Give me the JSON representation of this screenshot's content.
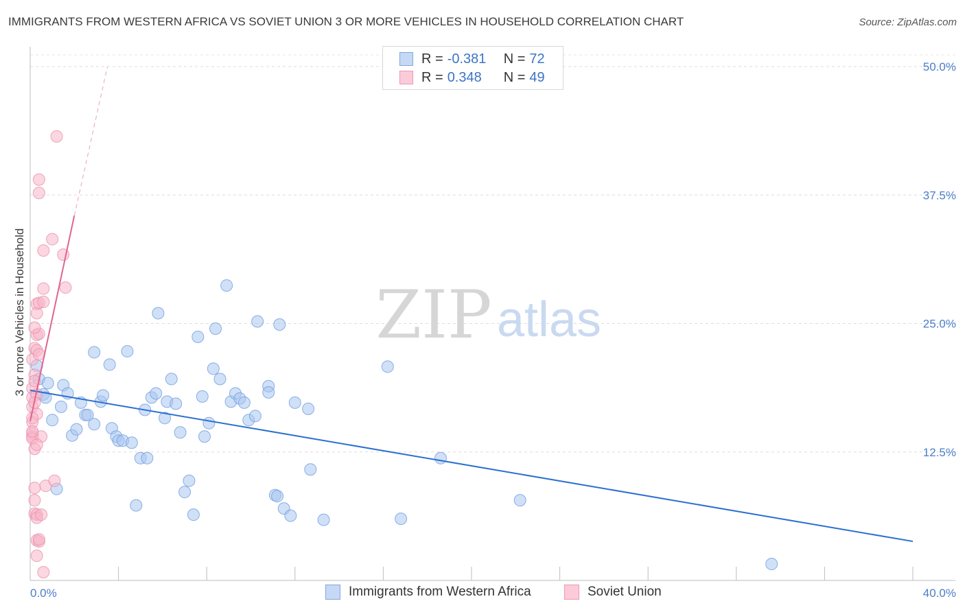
{
  "header": {
    "title": "IMMIGRANTS FROM WESTERN AFRICA VS SOVIET UNION 3 OR MORE VEHICLES IN HOUSEHOLD CORRELATION CHART",
    "source": "Source: ZipAtlas.com"
  },
  "legend": {
    "row1": {
      "r_label": "R = ",
      "r_value": "-0.381",
      "n_label": "N = ",
      "n_value": "72"
    },
    "row2": {
      "r_label": "R = ",
      "r_value": "0.348",
      "n_label": "N = ",
      "n_value": "49"
    }
  },
  "watermark": {
    "part1": "ZIP",
    "part2": "atlas"
  },
  "chart_data": {
    "type": "scatter",
    "xlabel": "",
    "ylabel": "3 or more Vehicles in Household",
    "xlim": [
      0,
      40
    ],
    "ylim": [
      0,
      50
    ],
    "x_tick_labels": [
      "0.0%",
      "40.0%"
    ],
    "y_ticks": [
      12.5,
      25.0,
      37.5,
      50.0
    ],
    "y_tick_labels": [
      "12.5%",
      "25.0%",
      "37.5%",
      "50.0%"
    ],
    "grid": "horizontal dashed",
    "legend_position": "top-center and bottom",
    "colors": {
      "blue": "#a9c6f0",
      "blue_line": "#2a6fd0",
      "pink": "#f7b6c9",
      "pink_line": "#e0648f"
    },
    "series": [
      {
        "name": "Immigrants from Western Africa",
        "r": -0.381,
        "n": 72,
        "trend": {
          "x": [
            0,
            40
          ],
          "y": [
            18.5,
            3.8
          ]
        },
        "points": [
          [
            0.3,
            20.9
          ],
          [
            0.4,
            19.6
          ],
          [
            0.6,
            18.1
          ],
          [
            0.8,
            19.2
          ],
          [
            0.7,
            17.8
          ],
          [
            1.0,
            15.6
          ],
          [
            1.4,
            16.9
          ],
          [
            1.5,
            19.0
          ],
          [
            1.7,
            18.2
          ],
          [
            1.9,
            14.1
          ],
          [
            2.1,
            14.7
          ],
          [
            2.3,
            17.3
          ],
          [
            2.5,
            16.1
          ],
          [
            2.6,
            16.1
          ],
          [
            2.9,
            15.2
          ],
          [
            2.9,
            22.2
          ],
          [
            3.2,
            17.4
          ],
          [
            3.3,
            18.0
          ],
          [
            3.6,
            21.0
          ],
          [
            3.7,
            14.8
          ],
          [
            3.9,
            14.0
          ],
          [
            4.0,
            13.6
          ],
          [
            4.2,
            13.6
          ],
          [
            4.4,
            22.3
          ],
          [
            4.6,
            13.4
          ],
          [
            4.8,
            7.3
          ],
          [
            5.0,
            11.9
          ],
          [
            5.2,
            16.6
          ],
          [
            5.3,
            11.9
          ],
          [
            5.5,
            17.8
          ],
          [
            5.7,
            18.2
          ],
          [
            5.8,
            26.0
          ],
          [
            6.1,
            15.8
          ],
          [
            6.2,
            17.4
          ],
          [
            6.4,
            19.6
          ],
          [
            6.6,
            17.2
          ],
          [
            6.8,
            14.4
          ],
          [
            7.0,
            8.6
          ],
          [
            7.2,
            9.7
          ],
          [
            7.4,
            6.4
          ],
          [
            7.6,
            23.7
          ],
          [
            7.8,
            17.9
          ],
          [
            7.9,
            14.0
          ],
          [
            8.1,
            15.3
          ],
          [
            8.3,
            20.6
          ],
          [
            8.4,
            24.5
          ],
          [
            8.6,
            19.6
          ],
          [
            8.9,
            28.7
          ],
          [
            9.1,
            17.4
          ],
          [
            9.3,
            18.2
          ],
          [
            9.5,
            17.7
          ],
          [
            9.7,
            17.3
          ],
          [
            9.9,
            15.6
          ],
          [
            10.2,
            16.0
          ],
          [
            10.3,
            25.2
          ],
          [
            10.8,
            18.9
          ],
          [
            10.8,
            18.3
          ],
          [
            11.1,
            8.3
          ],
          [
            11.2,
            8.2
          ],
          [
            11.3,
            24.9
          ],
          [
            11.5,
            7.0
          ],
          [
            11.8,
            6.3
          ],
          [
            12.0,
            17.3
          ],
          [
            12.6,
            16.7
          ],
          [
            12.7,
            10.8
          ],
          [
            13.3,
            5.9
          ],
          [
            16.2,
            20.8
          ],
          [
            16.8,
            6.0
          ],
          [
            18.6,
            11.9
          ],
          [
            22.2,
            7.8
          ],
          [
            33.6,
            1.6
          ],
          [
            1.2,
            8.9
          ]
        ]
      },
      {
        "name": "Soviet Union",
        "r": 0.348,
        "n": 49,
        "trend": {
          "x": [
            0,
            2.0
          ],
          "y": [
            15.5,
            35.5
          ]
        },
        "trend_extension": {
          "x": [
            2.0,
            3.5
          ],
          "y": [
            35.5,
            50.0
          ]
        },
        "points": [
          [
            0.1,
            21.5
          ],
          [
            0.1,
            18.7
          ],
          [
            0.1,
            17.8
          ],
          [
            0.1,
            16.9
          ],
          [
            0.1,
            15.4
          ],
          [
            0.1,
            14.3
          ],
          [
            0.1,
            14.0
          ],
          [
            0.1,
            13.8
          ],
          [
            0.2,
            22.6
          ],
          [
            0.2,
            20.0
          ],
          [
            0.2,
            12.8
          ],
          [
            0.2,
            9.0
          ],
          [
            0.2,
            7.8
          ],
          [
            0.2,
            6.5
          ],
          [
            0.3,
            26.9
          ],
          [
            0.3,
            23.9
          ],
          [
            0.3,
            22.4
          ],
          [
            0.3,
            18.1
          ],
          [
            0.3,
            16.2
          ],
          [
            0.3,
            26.0
          ],
          [
            0.3,
            6.4
          ],
          [
            0.3,
            6.1
          ],
          [
            0.3,
            2.4
          ],
          [
            0.3,
            3.9
          ],
          [
            0.4,
            39.0
          ],
          [
            0.4,
            37.7
          ],
          [
            0.4,
            27.0
          ],
          [
            0.4,
            24.0
          ],
          [
            0.4,
            3.8
          ],
          [
            0.4,
            4.0
          ],
          [
            0.5,
            14.0
          ],
          [
            0.6,
            28.4
          ],
          [
            0.6,
            32.1
          ],
          [
            0.6,
            27.1
          ],
          [
            0.6,
            0.8
          ],
          [
            0.7,
            9.2
          ],
          [
            1.0,
            33.2
          ],
          [
            1.1,
            9.7
          ],
          [
            1.2,
            43.2
          ],
          [
            1.5,
            31.7
          ],
          [
            1.6,
            28.5
          ],
          [
            0.1,
            15.8
          ],
          [
            0.2,
            19.4
          ],
          [
            0.1,
            14.5
          ],
          [
            0.2,
            17.3
          ],
          [
            0.4,
            22.0
          ],
          [
            0.3,
            13.2
          ],
          [
            0.2,
            24.6
          ],
          [
            0.5,
            6.4
          ]
        ]
      }
    ]
  },
  "bottom_legend": {
    "item1": "Immigrants from Western Africa",
    "item2": "Soviet Union"
  }
}
